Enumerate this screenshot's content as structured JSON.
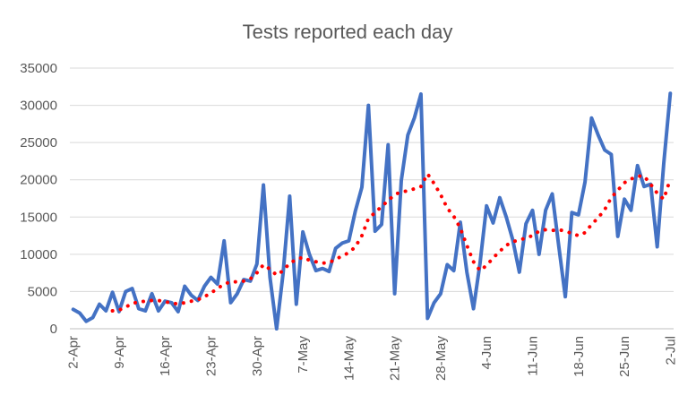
{
  "chart_data": {
    "type": "line",
    "title": "Tests reported each day",
    "xlabel": "",
    "ylabel": "",
    "ylim": [
      0,
      35000
    ],
    "yticks": [
      0,
      5000,
      10000,
      15000,
      20000,
      25000,
      30000,
      35000
    ],
    "grid": true,
    "legend": "none",
    "x_tick_labels": [
      "2-Apr",
      "9-Apr",
      "16-Apr",
      "23-Apr",
      "30-Apr",
      "7-May",
      "14-May",
      "21-May",
      "28-May",
      "4-Jun",
      "11-Jun",
      "18-Jun",
      "25-Jun",
      "2-Jul"
    ],
    "x": [
      "2-Apr",
      "3-Apr",
      "4-Apr",
      "5-Apr",
      "6-Apr",
      "7-Apr",
      "8-Apr",
      "9-Apr",
      "10-Apr",
      "11-Apr",
      "12-Apr",
      "13-Apr",
      "14-Apr",
      "15-Apr",
      "16-Apr",
      "17-Apr",
      "18-Apr",
      "19-Apr",
      "20-Apr",
      "21-Apr",
      "22-Apr",
      "23-Apr",
      "24-Apr",
      "25-Apr",
      "26-Apr",
      "27-Apr",
      "28-Apr",
      "29-Apr",
      "30-Apr",
      "1-May",
      "2-May",
      "3-May",
      "4-May",
      "5-May",
      "6-May",
      "7-May",
      "8-May",
      "9-May",
      "10-May",
      "11-May",
      "12-May",
      "13-May",
      "14-May",
      "15-May",
      "16-May",
      "17-May",
      "18-May",
      "19-May",
      "20-May",
      "21-May",
      "22-May",
      "23-May",
      "24-May",
      "25-May",
      "26-May",
      "27-May",
      "28-May",
      "29-May",
      "30-May",
      "31-May",
      "1-Jun",
      "2-Jun",
      "3-Jun",
      "4-Jun",
      "5-Jun",
      "6-Jun",
      "7-Jun",
      "8-Jun",
      "9-Jun",
      "10-Jun",
      "11-Jun",
      "12-Jun",
      "13-Jun",
      "14-Jun",
      "15-Jun",
      "16-Jun",
      "17-Jun",
      "18-Jun",
      "19-Jun",
      "20-Jun",
      "21-Jun",
      "22-Jun",
      "23-Jun",
      "24-Jun",
      "25-Jun",
      "26-Jun",
      "27-Jun",
      "28-Jun",
      "29-Jun",
      "30-Jun",
      "1-Jul",
      "2-Jul"
    ],
    "series": [
      {
        "color": "#4472c4",
        "style": "solid",
        "values": [
          2600,
          2100,
          1000,
          1500,
          3300,
          2400,
          4900,
          2300,
          5000,
          5400,
          2700,
          2400,
          4700,
          2400,
          3700,
          3500,
          2300,
          5700,
          4500,
          3800,
          5700,
          6900,
          6000,
          11800,
          3500,
          4700,
          6600,
          6400,
          8700,
          19300,
          6900,
          0,
          7500,
          17800,
          3300,
          13000,
          10000,
          7800,
          8100,
          7700,
          10800,
          11500,
          11800,
          15800,
          19000,
          30000,
          13100,
          14000,
          24700,
          4700,
          19900,
          26000,
          28300,
          31500,
          1400,
          3500,
          4700,
          8600,
          7800,
          14300,
          7600,
          2700,
          8800,
          16500,
          14200,
          17600,
          15000,
          11900,
          7600,
          14100,
          15900,
          10000,
          15900,
          18100,
          11100,
          4300,
          15600,
          15300,
          19700,
          28300,
          26000,
          24000,
          23400,
          12400,
          17400,
          15900,
          21900,
          19100,
          19400,
          11000,
          22200,
          31600
        ]
      },
      {
        "color": "#ff0000",
        "style": "dotted",
        "values": [
          null,
          null,
          null,
          null,
          null,
          null,
          2400,
          2500,
          2900,
          3400,
          3600,
          3700,
          3800,
          3800,
          3600,
          3500,
          3300,
          3500,
          3700,
          3900,
          4300,
          4800,
          5400,
          6000,
          6300,
          6300,
          6400,
          6700,
          7500,
          8600,
          8000,
          7200,
          7800,
          8800,
          9300,
          9600,
          9200,
          9000,
          8800,
          8900,
          9300,
          9800,
          10200,
          11000,
          12500,
          14800,
          15600,
          16400,
          17200,
          18000,
          18400,
          18500,
          18800,
          19100,
          20800,
          19500,
          18000,
          16200,
          15100,
          13500,
          11200,
          9000,
          7800,
          8500,
          9500,
          10400,
          11200,
          11700,
          11900,
          12200,
          12500,
          13100,
          13300,
          13200,
          13300,
          13100,
          12800,
          12500,
          12900,
          14000,
          14900,
          16000,
          17600,
          18600,
          19600,
          20100,
          20500,
          20500,
          19400,
          18200,
          17400,
          20100
        ]
      }
    ]
  }
}
